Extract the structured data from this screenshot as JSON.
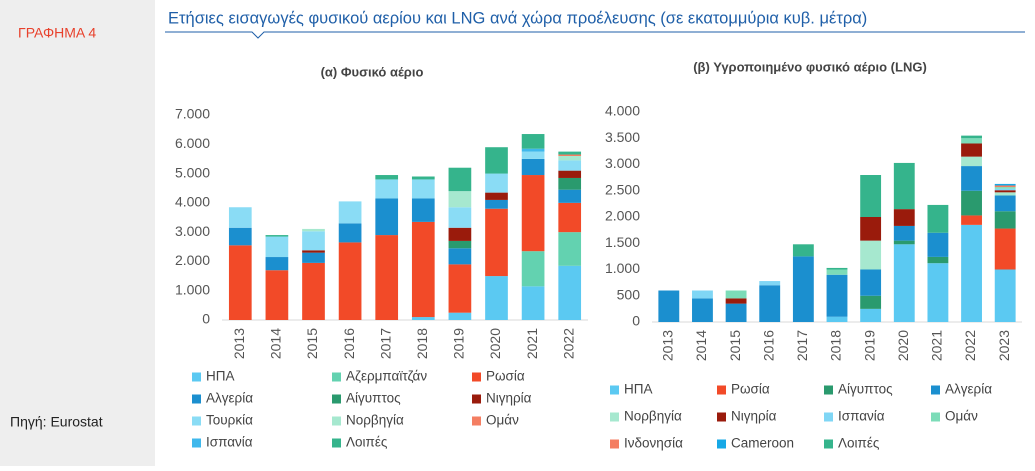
{
  "header": {
    "label": "ΓΡΑΦΗΜΑ 4",
    "title": "Ετήσιες εισαγωγές φυσικού αερίου και LNG ανά χώρα προέλευσης (σε εκατομμύρια κυβ. μέτρα)"
  },
  "source": "Πηγή: Eurostat",
  "chart_data": [
    {
      "type": "stacked-bar",
      "title": "(α) Φυσικό αέριο",
      "categories": [
        "2013",
        "2014",
        "2015",
        "2016",
        "2017",
        "2018",
        "2019",
        "2020",
        "2021",
        "2022"
      ],
      "ylim": [
        0,
        7000
      ],
      "yticks": [
        0,
        {
          "value": 1000,
          "label": "1.000"
        },
        {
          "value": 2000,
          "label": "2.000"
        },
        {
          "value": 3000,
          "label": "3.000"
        },
        {
          "value": 4000,
          "label": "4.000"
        },
        {
          "value": 5000,
          "label": "5.000"
        },
        {
          "value": 6000,
          "label": "6.000"
        },
        {
          "value": 7000,
          "label": "7.000"
        }
      ],
      "grid": false,
      "series": [
        {
          "name": "ΗΠΑ",
          "color": "#5bc9f2",
          "values": [
            0,
            0,
            0,
            0,
            0,
            100,
            250,
            1500,
            1150,
            1850
          ]
        },
        {
          "name": "Αζερμπαϊτζάν",
          "color": "#63d2b0",
          "values": [
            0,
            0,
            0,
            0,
            0,
            0,
            0,
            0,
            1200,
            1150
          ]
        },
        {
          "name": "Ρωσία",
          "color": "#f24a28",
          "values": [
            2550,
            1700,
            1950,
            2650,
            2900,
            3250,
            1650,
            2300,
            2600,
            1000
          ]
        },
        {
          "name": "Αλγερία",
          "color": "#1b8fcf",
          "values": [
            600,
            450,
            350,
            650,
            1250,
            800,
            550,
            300,
            550,
            450
          ]
        },
        {
          "name": "Αίγυπτος",
          "color": "#2a9a6e",
          "values": [
            0,
            0,
            0,
            0,
            0,
            0,
            250,
            0,
            0,
            400
          ]
        },
        {
          "name": "Νιγηρία",
          "color": "#9a1b0c",
          "values": [
            0,
            0,
            80,
            0,
            0,
            0,
            450,
            250,
            0,
            250
          ]
        },
        {
          "name": "Τουρκία",
          "color": "#8adcf5",
          "values": [
            700,
            700,
            650,
            750,
            650,
            650,
            700,
            650,
            250,
            350
          ]
        },
        {
          "name": "Νορβηγία",
          "color": "#a6e8cf",
          "values": [
            0,
            0,
            80,
            0,
            0,
            0,
            550,
            0,
            0,
            150
          ]
        },
        {
          "name": "Ομάν",
          "color": "#f47e62",
          "values": [
            0,
            0,
            0,
            0,
            0,
            0,
            0,
            0,
            0,
            50
          ]
        },
        {
          "name": "Ισπανία",
          "color": "#3fb8ec",
          "values": [
            0,
            0,
            0,
            0,
            0,
            0,
            0,
            0,
            100,
            0
          ]
        },
        {
          "name": "Λοιπές",
          "color": "#35b48c",
          "values": [
            0,
            50,
            0,
            0,
            150,
            100,
            800,
            900,
            500,
            100
          ]
        }
      ]
    },
    {
      "type": "stacked-bar",
      "title": "(β) Υγροποιημένο φυσικό αέριο (LNG)",
      "categories": [
        "2013",
        "2014",
        "2015",
        "2016",
        "2017",
        "2018",
        "2019",
        "2020",
        "2021",
        "2022",
        "2023"
      ],
      "ylim": [
        0,
        4000
      ],
      "yticks": [
        0,
        500,
        {
          "value": 1000,
          "label": "1.000"
        },
        {
          "value": 1500,
          "label": "1.500"
        },
        {
          "value": 2000,
          "label": "2.000"
        },
        {
          "value": 2500,
          "label": "2.500"
        },
        {
          "value": 3000,
          "label": "3.000"
        },
        {
          "value": 3500,
          "label": "3.500"
        },
        {
          "value": 4000,
          "label": "4.000"
        }
      ],
      "grid": false,
      "series": [
        {
          "name": "ΗΠΑ",
          "color": "#5bc9f2",
          "values": [
            0,
            0,
            0,
            0,
            0,
            100,
            250,
            1480,
            1120,
            1850,
            1000
          ]
        },
        {
          "name": "Ρωσία",
          "color": "#f24a28",
          "values": [
            0,
            0,
            0,
            0,
            0,
            0,
            0,
            0,
            0,
            180,
            780
          ]
        },
        {
          "name": "Αίγυπτος",
          "color": "#2a9a6e",
          "values": [
            0,
            0,
            0,
            0,
            0,
            0,
            250,
            70,
            120,
            470,
            330
          ]
        },
        {
          "name": "Αλγερία",
          "color": "#1b8fcf",
          "values": [
            600,
            450,
            350,
            700,
            1250,
            800,
            500,
            280,
            460,
            470,
            300
          ]
        },
        {
          "name": "Νορβηγία",
          "color": "#a6e8cf",
          "values": [
            0,
            0,
            0,
            0,
            0,
            0,
            550,
            0,
            0,
            180,
            60
          ]
        },
        {
          "name": "Νιγηρία",
          "color": "#9a1b0c",
          "values": [
            0,
            0,
            100,
            0,
            0,
            0,
            450,
            320,
            0,
            250,
            40
          ]
        },
        {
          "name": "Ισπανία",
          "color": "#7fd6f5",
          "values": [
            0,
            150,
            0,
            80,
            0,
            0,
            0,
            0,
            0,
            0,
            30
          ]
        },
        {
          "name": "Ομάν",
          "color": "#7cdcb8",
          "values": [
            0,
            0,
            150,
            0,
            0,
            100,
            0,
            0,
            0,
            100,
            30
          ]
        },
        {
          "name": "Ινδονησία",
          "color": "#f47e62",
          "values": [
            0,
            0,
            0,
            0,
            0,
            0,
            0,
            0,
            0,
            0,
            30
          ]
        },
        {
          "name": "Cameroon",
          "color": "#17a8e6",
          "values": [
            0,
            0,
            0,
            0,
            0,
            0,
            0,
            0,
            0,
            0,
            30
          ]
        },
        {
          "name": "Λοιπές",
          "color": "#35b48c",
          "values": [
            0,
            0,
            0,
            0,
            230,
            30,
            800,
            880,
            530,
            50,
            0
          ]
        }
      ]
    }
  ]
}
